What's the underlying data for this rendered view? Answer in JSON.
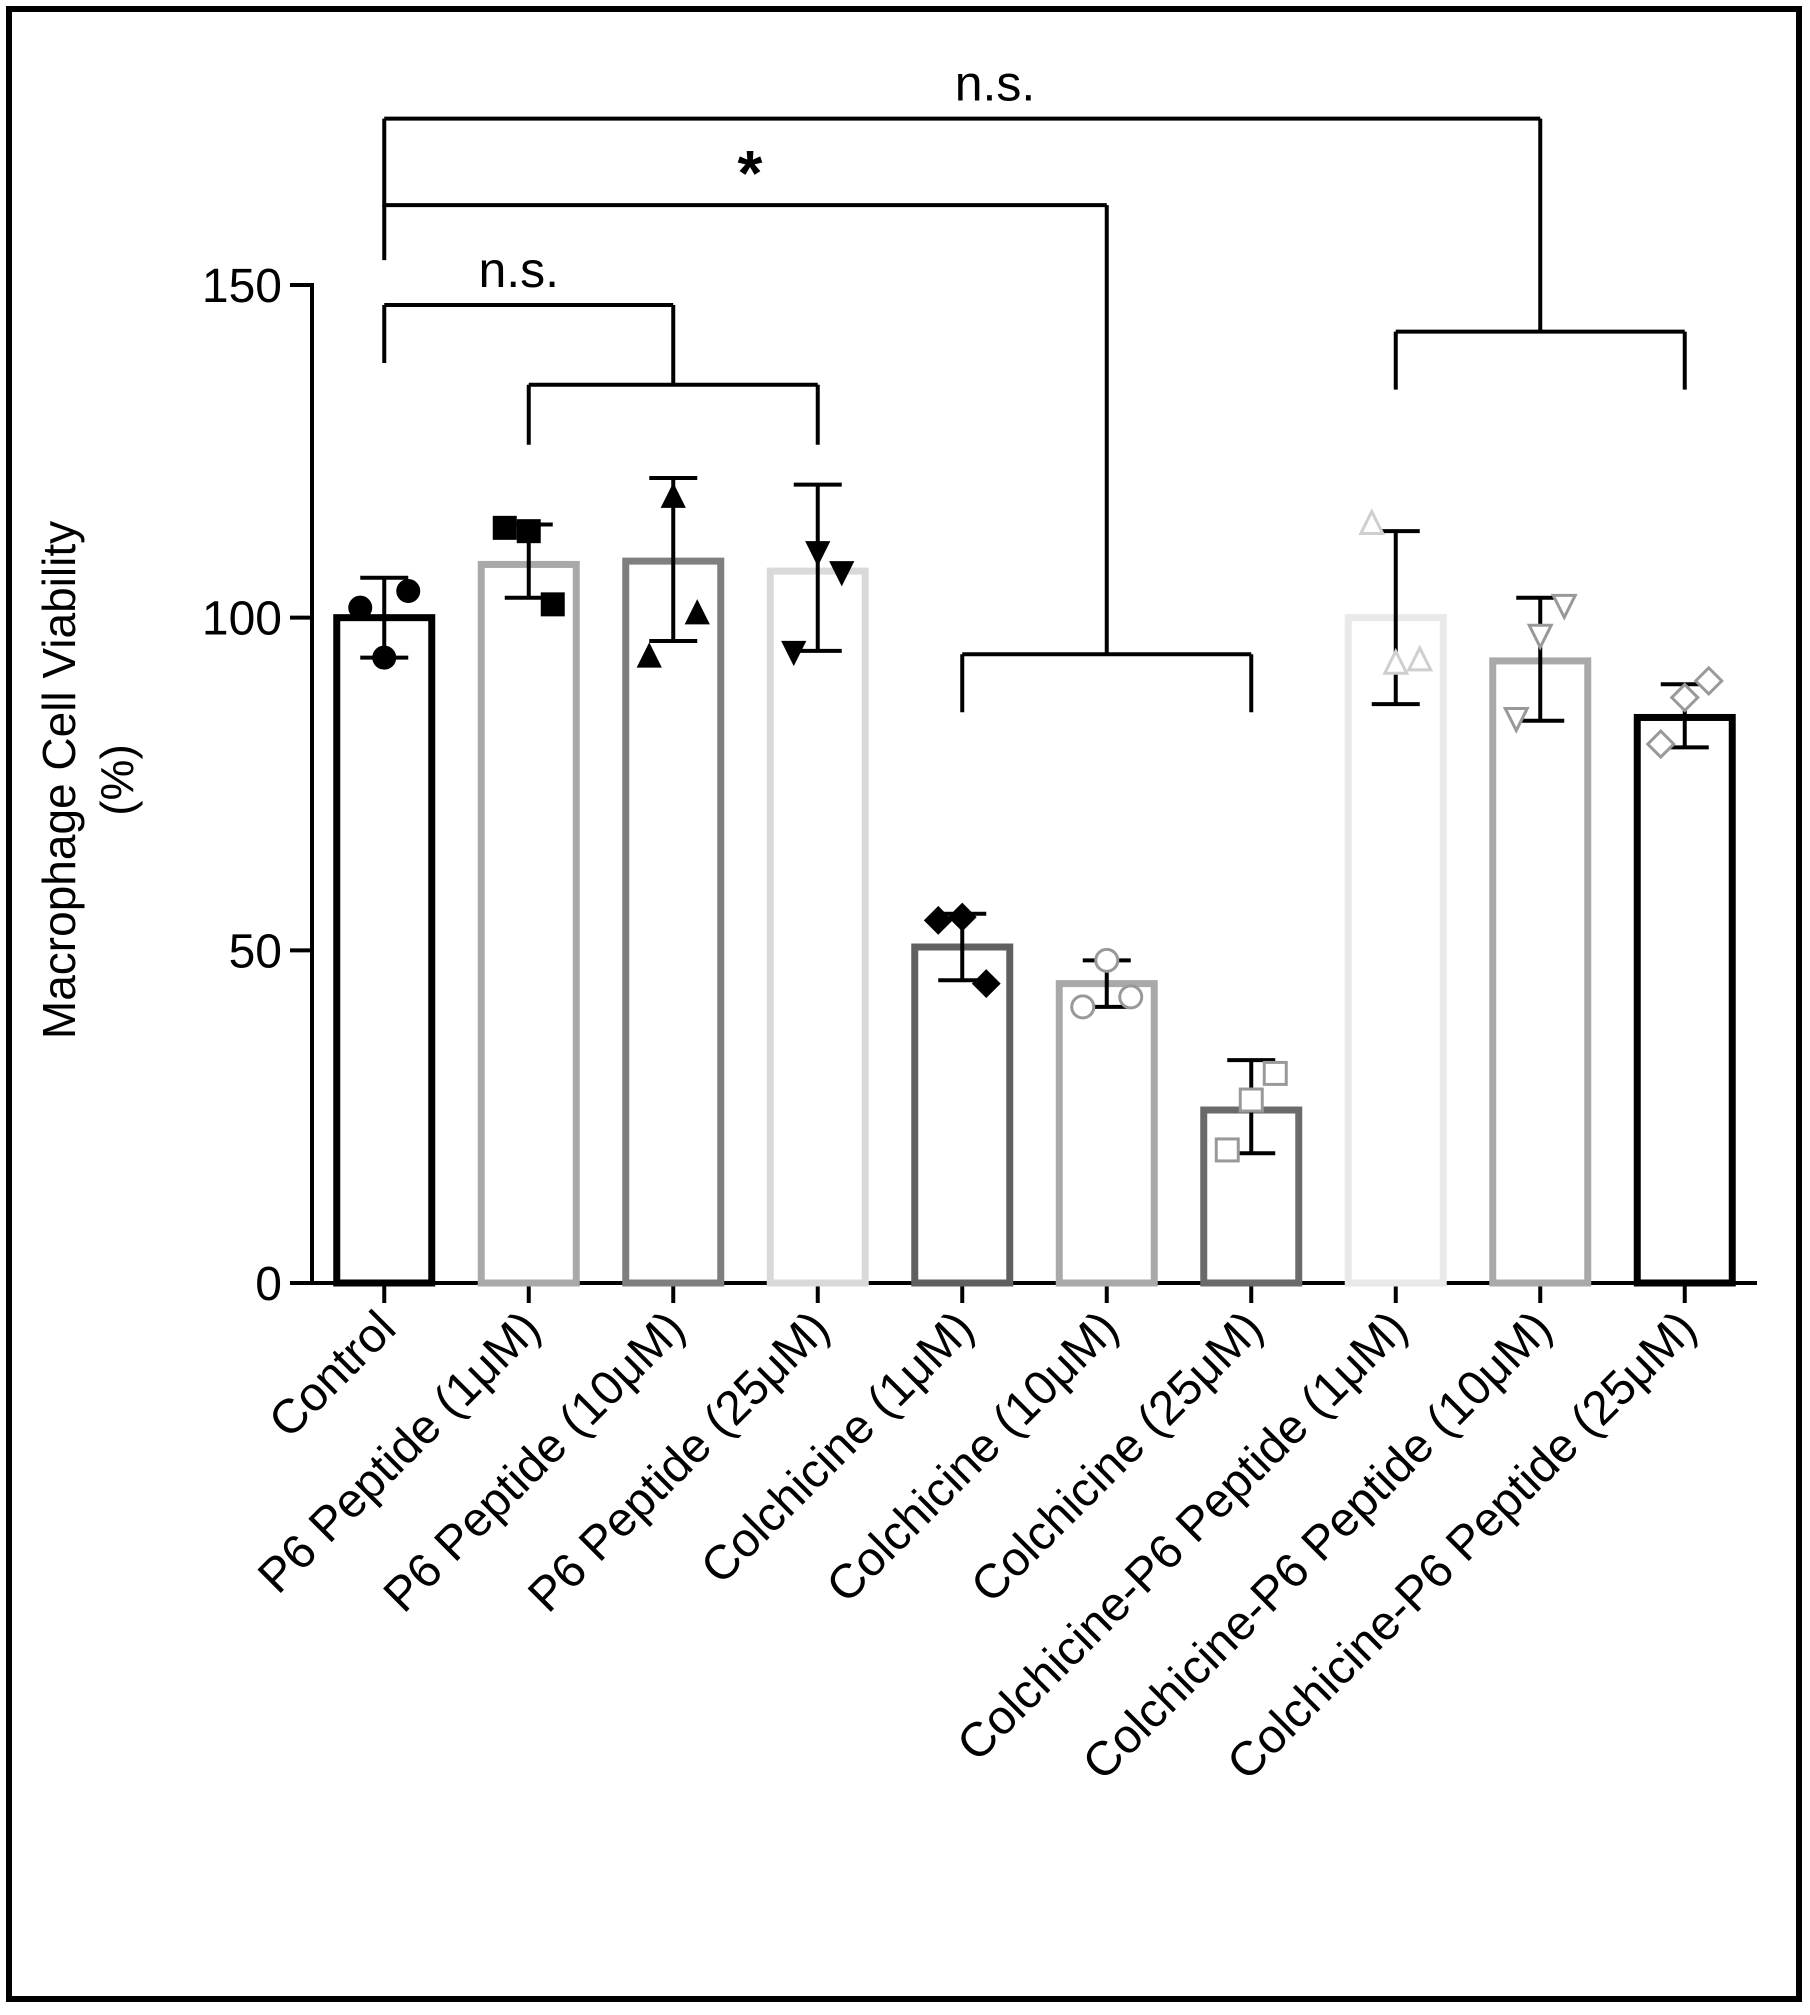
{
  "chart_data": {
    "type": "bar",
    "title": "",
    "xlabel": "",
    "ylabel_lines": [
      "Macrophage Cell Viability",
      "(%)"
    ],
    "ylim": [
      0,
      150
    ],
    "yticks": [
      0,
      50,
      100,
      150
    ],
    "grid": false,
    "categories": [
      "Control",
      "P6 Peptide (1μM)",
      "P6 Peptide (10μM)",
      "P6 Peptide (25μM)",
      "Colchicine (1μM)",
      "Colchicine (10μM)",
      "Colchicine (25μM)",
      "Colchicine-P6 Peptide (1μM)",
      "Colchicine-P6 Peptide (10μM)",
      "Colchicine-P6 Peptide (25μM)"
    ],
    "values": [
      100,
      108,
      108.5,
      107,
      50.5,
      45,
      26,
      100,
      93.5,
      85
    ],
    "error_high": [
      106,
      114,
      121,
      120,
      55.5,
      48.5,
      33.5,
      113,
      103,
      90
    ],
    "error_low": [
      94,
      103,
      96.5,
      95,
      45.5,
      41.5,
      19.5,
      87,
      84.5,
      80.5
    ],
    "points": [
      [
        101.5,
        94,
        104
      ],
      [
        113.5,
        113,
        102
      ],
      [
        94,
        118,
        100.5
      ],
      [
        95,
        110,
        107
      ],
      [
        54.5,
        55,
        45
      ],
      [
        41.5,
        48.5,
        43
      ],
      [
        20,
        27.5,
        31.5
      ],
      [
        114,
        93,
        93.5
      ],
      [
        85,
        97.5,
        102
      ],
      [
        81,
        88,
        90.5
      ]
    ],
    "markers": [
      "circle",
      "square",
      "triangle-up",
      "triangle-down",
      "diamond",
      "circle",
      "square",
      "triangle-up",
      "triangle-down",
      "diamond"
    ],
    "marker_filled": [
      true,
      true,
      true,
      true,
      true,
      false,
      false,
      false,
      false,
      false
    ],
    "bar_colors": [
      "#000000",
      "#a9a9a9",
      "#7f7f7f",
      "#d9d9d9",
      "#606060",
      "#a9a9a9",
      "#6a6a6a",
      "#e9e9e9",
      "#a9a9a9",
      "#000000"
    ],
    "significance": [
      {
        "label": "n.s.",
        "from": [
          0
        ],
        "to": [
          1,
          2,
          3
        ],
        "level": 136
      },
      {
        "label": "*",
        "from": [
          0
        ],
        "to": [
          4,
          5,
          6
        ],
        "level": 157
      },
      {
        "label": "n.s.",
        "from": [
          0
        ],
        "to": [
          7,
          8,
          9
        ],
        "level": 174
      }
    ]
  }
}
